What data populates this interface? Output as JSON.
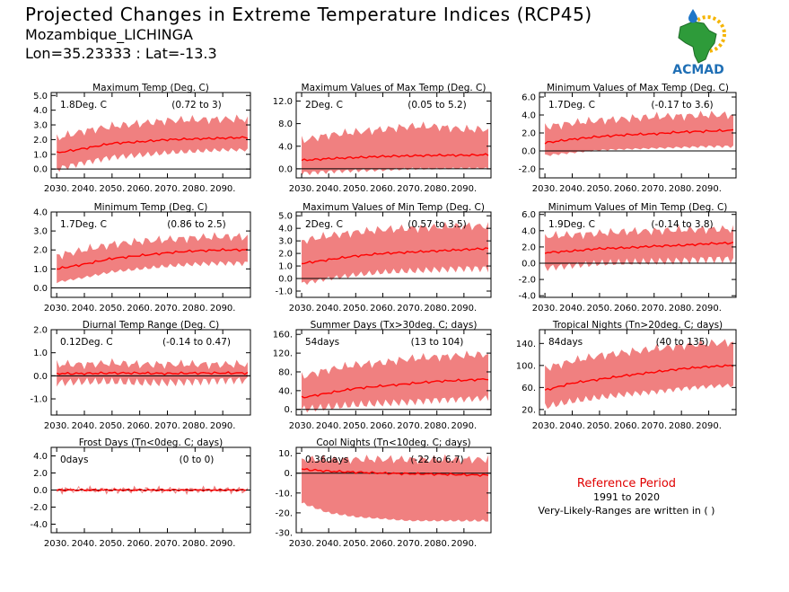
{
  "header": {
    "title": "Projected Changes in Extreme Temperature Indices (RCP45)",
    "location": "Mozambique_LICHINGA",
    "coords": "Lon=35.23333 : Lat=-13.3"
  },
  "logo": {
    "text": "ACMAD",
    "icon": "africa-map-sun-raindrop-logo"
  },
  "reference": {
    "title": "Reference Period",
    "years": "1991 to 2020",
    "note": "Very-Likely-Ranges are written in ( )"
  },
  "colors": {
    "band": "#f08080",
    "line": "#ff0000",
    "zero": "#000000",
    "ref_title": "#e00000"
  },
  "chart_data": [
    {
      "type": "area",
      "title": "Maximum Temp (Deg. C)",
      "summary": "1.8Deg. C",
      "range_text": "(0.72 to 3)",
      "ylim": [
        -0.6,
        5.2
      ],
      "yticks": [
        0,
        1,
        2,
        3,
        4,
        5
      ],
      "ytick_labels": [
        "0.0",
        "1.0",
        "2.0",
        "3.0",
        "4.0",
        "5.0"
      ],
      "xticks": [
        2030,
        2040,
        2050,
        2060,
        2070,
        2080,
        2090
      ],
      "xtick_labels": [
        "2030.",
        "2040.",
        "2050.",
        "2060.",
        "2070.",
        "2080.",
        "2090."
      ],
      "x": [
        2030,
        2040,
        2050,
        2060,
        2070,
        2080,
        2090,
        2099
      ],
      "median": [
        1.1,
        1.4,
        1.75,
        1.85,
        2.0,
        2.05,
        2.1,
        2.15
      ],
      "low": [
        0.0,
        0.45,
        0.8,
        0.95,
        1.1,
        1.2,
        1.3,
        1.3
      ],
      "high": [
        2.1,
        2.6,
        2.9,
        3.1,
        3.3,
        3.35,
        3.4,
        3.4
      ]
    },
    {
      "type": "area",
      "title": "Maximum Values of Max Temp (Deg. C)",
      "summary": "2Deg. C",
      "range_text": "(0.05 to 5.2)",
      "ylim": [
        -1.6,
        13.5
      ],
      "yticks": [
        0,
        4,
        8,
        12
      ],
      "ytick_labels": [
        "0.0",
        "4.0",
        "8.0",
        "12.0"
      ],
      "xticks": [
        2030,
        2040,
        2050,
        2060,
        2070,
        2080,
        2090
      ],
      "xtick_labels": [
        "2030.",
        "2040.",
        "2050.",
        "2060.",
        "2070.",
        "2080.",
        "2090."
      ],
      "x": [
        2030,
        2040,
        2050,
        2060,
        2070,
        2080,
        2090,
        2099
      ],
      "median": [
        1.5,
        1.8,
        2.0,
        2.2,
        2.3,
        2.4,
        2.4,
        2.5
      ],
      "low": [
        -0.8,
        -0.5,
        -0.3,
        -0.2,
        0.0,
        0.0,
        0.1,
        0.1
      ],
      "high": [
        5.0,
        6.0,
        6.5,
        7.0,
        7.5,
        7.5,
        7.0,
        7.0
      ]
    },
    {
      "type": "area",
      "title": "Minimum Values of Max Temp (Deg. C)",
      "summary": "1.7Deg. C",
      "range_text": "(-0.17 to 3.6)",
      "ylim": [
        -3.0,
        6.5
      ],
      "yticks": [
        -2,
        0,
        2,
        4,
        6
      ],
      "ytick_labels": [
        "-2.0",
        "0.0",
        "2.0",
        "4.0",
        "6.0"
      ],
      "xticks": [
        2030,
        2040,
        2050,
        2060,
        2070,
        2080,
        2090
      ],
      "xtick_labels": [
        "2030.",
        "2040.",
        "2050.",
        "2060.",
        "2070.",
        "2080.",
        "2090."
      ],
      "x": [
        2030,
        2040,
        2050,
        2060,
        2070,
        2080,
        2090,
        2099
      ],
      "median": [
        0.9,
        1.3,
        1.6,
        1.8,
        1.9,
        2.1,
        2.2,
        2.3
      ],
      "low": [
        -0.5,
        -0.2,
        0.1,
        0.2,
        0.3,
        0.4,
        0.5,
        0.5
      ],
      "high": [
        2.7,
        3.1,
        3.4,
        3.6,
        3.8,
        3.9,
        4.0,
        4.0
      ]
    },
    {
      "type": "area",
      "title": "Minimum Temp (Deg. C)",
      "summary": "1.7Deg. C",
      "range_text": "(0.86 to 2.5)",
      "ylim": [
        -0.5,
        4.0
      ],
      "yticks": [
        0,
        1,
        2,
        3,
        4
      ],
      "ytick_labels": [
        "0.0",
        "1.0",
        "2.0",
        "3.0",
        "4.0"
      ],
      "xticks": [
        2030,
        2040,
        2050,
        2060,
        2070,
        2080,
        2090
      ],
      "xtick_labels": [
        "2030.",
        "2040.",
        "2050.",
        "2060.",
        "2070.",
        "2080.",
        "2090."
      ],
      "x": [
        2030,
        2040,
        2050,
        2060,
        2070,
        2080,
        2090,
        2099
      ],
      "median": [
        1.0,
        1.25,
        1.55,
        1.7,
        1.85,
        1.95,
        2.0,
        2.0
      ],
      "low": [
        0.3,
        0.55,
        0.85,
        1.0,
        1.15,
        1.25,
        1.3,
        1.3
      ],
      "high": [
        1.7,
        2.0,
        2.3,
        2.45,
        2.55,
        2.65,
        2.7,
        2.7
      ]
    },
    {
      "type": "area",
      "title": "Maximum Values of Min Temp (Deg. C)",
      "summary": "2Deg. C",
      "range_text": "(0.57 to 3.5)",
      "ylim": [
        -1.5,
        5.3
      ],
      "yticks": [
        -1,
        0,
        1,
        2,
        3,
        4,
        5
      ],
      "ytick_labels": [
        "-1.0",
        "0.0",
        "1.0",
        "2.0",
        "3.0",
        "4.0",
        "5.0"
      ],
      "xticks": [
        2030,
        2040,
        2050,
        2060,
        2070,
        2080,
        2090
      ],
      "xtick_labels": [
        "2030.",
        "2040.",
        "2050.",
        "2060.",
        "2070.",
        "2080.",
        "2090."
      ],
      "x": [
        2030,
        2040,
        2050,
        2060,
        2070,
        2080,
        2090,
        2099
      ],
      "median": [
        1.2,
        1.5,
        1.8,
        2.0,
        2.1,
        2.2,
        2.3,
        2.4
      ],
      "low": [
        -0.4,
        0.0,
        0.3,
        0.5,
        0.6,
        0.7,
        0.8,
        0.8
      ],
      "high": [
        3.0,
        3.4,
        3.7,
        3.9,
        4.0,
        4.1,
        4.2,
        4.2
      ]
    },
    {
      "type": "area",
      "title": "Minimum Values of Min Temp (Deg. C)",
      "summary": "1.9Deg. C",
      "range_text": "(-0.14 to 3.8)",
      "ylim": [
        -4.2,
        6.3
      ],
      "yticks": [
        -4,
        -2,
        0,
        2,
        4,
        6
      ],
      "ytick_labels": [
        "-4.0",
        "-2.0",
        "0.0",
        "2.0",
        "4.0",
        "6.0"
      ],
      "xticks": [
        2030,
        2040,
        2050,
        2060,
        2070,
        2080,
        2090
      ],
      "xtick_labels": [
        "2030.",
        "2040.",
        "2050.",
        "2060.",
        "2070.",
        "2080.",
        "2090."
      ],
      "x": [
        2030,
        2040,
        2050,
        2060,
        2070,
        2080,
        2090,
        2099
      ],
      "median": [
        1.3,
        1.5,
        1.8,
        1.9,
        2.1,
        2.2,
        2.4,
        2.5
      ],
      "low": [
        -0.6,
        -0.3,
        0.0,
        0.1,
        0.2,
        0.3,
        0.5,
        0.5
      ],
      "high": [
        3.3,
        3.5,
        3.7,
        3.9,
        4.0,
        4.1,
        4.2,
        4.2
      ]
    },
    {
      "type": "area",
      "title": "Diurnal Temp Range (Deg. C)",
      "summary": "0.12Deg. C",
      "range_text": "(-0.14 to 0.47)",
      "ylim": [
        -1.7,
        2.0
      ],
      "yticks": [
        -1,
        0,
        1,
        2
      ],
      "ytick_labels": [
        "-1.0",
        "0.0",
        "1.0",
        "2.0"
      ],
      "xticks": [
        2030,
        2040,
        2050,
        2060,
        2070,
        2080,
        2090
      ],
      "xtick_labels": [
        "2030.",
        "2040.",
        "2050.",
        "2060.",
        "2070.",
        "2080.",
        "2090."
      ],
      "x": [
        2030,
        2040,
        2050,
        2060,
        2070,
        2080,
        2090,
        2099
      ],
      "median": [
        0.1,
        0.1,
        0.12,
        0.12,
        0.1,
        0.12,
        0.12,
        0.12
      ],
      "low": [
        -0.3,
        -0.25,
        -0.25,
        -0.3,
        -0.3,
        -0.25,
        -0.2,
        -0.2
      ],
      "high": [
        0.5,
        0.5,
        0.55,
        0.5,
        0.5,
        0.5,
        0.5,
        0.5
      ]
    },
    {
      "type": "area",
      "title": "Summer Days (Tx>30deg. C; days)",
      "summary": "54days",
      "range_text": "(13 to 104)",
      "ylim": [
        -12,
        170
      ],
      "yticks": [
        0,
        40,
        80,
        120,
        160
      ],
      "ytick_labels": [
        "0.",
        "40.",
        "80.",
        "120.",
        "160."
      ],
      "xticks": [
        2030,
        2040,
        2050,
        2060,
        2070,
        2080,
        2090
      ],
      "xtick_labels": [
        "2030.",
        "2040.",
        "2050.",
        "2060.",
        "2070.",
        "2080.",
        "2090."
      ],
      "x": [
        2030,
        2040,
        2050,
        2060,
        2070,
        2080,
        2090,
        2099
      ],
      "median": [
        25,
        35,
        45,
        50,
        55,
        60,
        62,
        65
      ],
      "low": [
        0,
        5,
        10,
        13,
        16,
        20,
        22,
        24
      ],
      "high": [
        70,
        85,
        95,
        100,
        108,
        112,
        115,
        118
      ]
    },
    {
      "type": "area",
      "title": "Tropical Nights (Tn>20deg. C; days)",
      "summary": "84days",
      "range_text": "(40 to 135)",
      "ylim": [
        10,
        165
      ],
      "yticks": [
        20,
        60,
        100,
        140
      ],
      "ytick_labels": [
        "20.",
        "60.",
        "100.",
        "140."
      ],
      "xticks": [
        2030,
        2040,
        2050,
        2060,
        2070,
        2080,
        2090
      ],
      "xtick_labels": [
        "2030.",
        "2040.",
        "2050.",
        "2060.",
        "2070.",
        "2080.",
        "2090."
      ],
      "x": [
        2030,
        2040,
        2050,
        2060,
        2070,
        2080,
        2090,
        2099
      ],
      "median": [
        55,
        68,
        75,
        82,
        88,
        94,
        98,
        100
      ],
      "low": [
        25,
        35,
        42,
        48,
        52,
        58,
        62,
        64
      ],
      "high": [
        95,
        108,
        118,
        124,
        130,
        136,
        140,
        142
      ]
    },
    {
      "type": "area",
      "title": "Frost Days (Tn<0deg. C; days)",
      "summary": "0days",
      "range_text": "(0 to 0)",
      "ylim": [
        -5.0,
        5.0
      ],
      "yticks": [
        -4,
        -2,
        0,
        2,
        4
      ],
      "ytick_labels": [
        "-4.0",
        "-2.0",
        "0.0",
        "2.0",
        "4.0"
      ],
      "xticks": [
        2030,
        2040,
        2050,
        2060,
        2070,
        2080,
        2090
      ],
      "xtick_labels": [
        "2030.",
        "2040.",
        "2050.",
        "2060.",
        "2070.",
        "2080.",
        "2090."
      ],
      "x": [
        2030,
        2040,
        2050,
        2060,
        2070,
        2080,
        2090,
        2099
      ],
      "median": [
        0,
        0,
        0,
        0,
        0,
        0,
        0,
        0
      ],
      "low": [
        0,
        0,
        0,
        0,
        0,
        0,
        0,
        0
      ],
      "high": [
        0,
        0,
        0,
        0,
        0,
        0,
        0,
        0
      ]
    },
    {
      "type": "area",
      "title": "Cool Nights (Tn<10deg. C; days)",
      "summary": "0.36days",
      "range_text": "(-22 to 6.7)",
      "ylim": [
        -30,
        13
      ],
      "yticks": [
        -30,
        -20,
        -10,
        0,
        10
      ],
      "ytick_labels": [
        "-30.",
        "-20.",
        "-10.",
        "0.",
        "10."
      ],
      "xticks": [
        2030,
        2040,
        2050,
        2060,
        2070,
        2080,
        2090
      ],
      "xtick_labels": [
        "2030.",
        "2040.",
        "2050.",
        "2060.",
        "2070.",
        "2080.",
        "2090."
      ],
      "x": [
        2030,
        2040,
        2050,
        2060,
        2070,
        2080,
        2090,
        2099
      ],
      "median": [
        2.0,
        1.0,
        0.5,
        0.0,
        -0.3,
        -0.5,
        -0.8,
        -1.0
      ],
      "low": [
        -15,
        -20,
        -22,
        -23,
        -24,
        -24,
        -24,
        -24
      ],
      "high": [
        7,
        7,
        7,
        7,
        7,
        7,
        7,
        7
      ]
    }
  ]
}
